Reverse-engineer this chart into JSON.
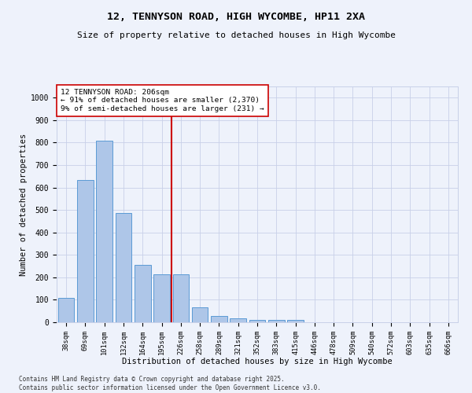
{
  "title1": "12, TENNYSON ROAD, HIGH WYCOMBE, HP11 2XA",
  "title2": "Size of property relative to detached houses in High Wycombe",
  "xlabel": "Distribution of detached houses by size in High Wycombe",
  "ylabel": "Number of detached properties",
  "footer": "Contains HM Land Registry data © Crown copyright and database right 2025.\nContains public sector information licensed under the Open Government Licence v3.0.",
  "categories": [
    "38sqm",
    "69sqm",
    "101sqm",
    "132sqm",
    "164sqm",
    "195sqm",
    "226sqm",
    "258sqm",
    "289sqm",
    "321sqm",
    "352sqm",
    "383sqm",
    "415sqm",
    "446sqm",
    "478sqm",
    "509sqm",
    "540sqm",
    "572sqm",
    "603sqm",
    "635sqm",
    "666sqm"
  ],
  "values": [
    110,
    635,
    810,
    485,
    256,
    213,
    213,
    65,
    28,
    18,
    12,
    10,
    10,
    0,
    0,
    0,
    0,
    0,
    0,
    0,
    0
  ],
  "bar_color": "#aec6e8",
  "bar_edge_color": "#5b9bd5",
  "annotation_text_line1": "12 TENNYSON ROAD: 206sqm",
  "annotation_text_line2": "← 91% of detached houses are smaller (2,370)",
  "annotation_text_line3": "9% of semi-detached houses are larger (231) →",
  "vline_x": 5.5,
  "vline_color": "#cc0000",
  "annotation_box_color": "#ffffff",
  "annotation_box_edge": "#cc0000",
  "bg_color": "#eef2fb",
  "grid_color": "#c8d0e8",
  "ylim": [
    0,
    1050
  ],
  "yticks": [
    0,
    100,
    200,
    300,
    400,
    500,
    600,
    700,
    800,
    900,
    1000
  ]
}
